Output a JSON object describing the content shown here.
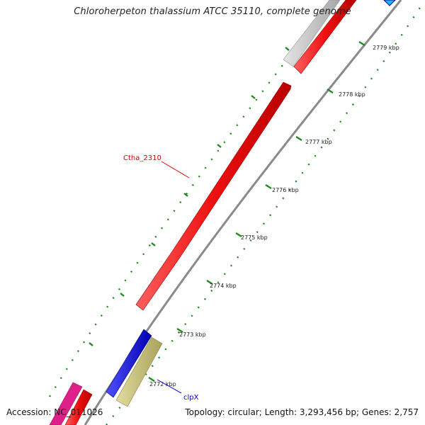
{
  "title": "Chloroherpeton thalassium ATCC 35110, complete genome",
  "footer": {
    "accession": "Accession: NC_011026",
    "summary": "Topology: circular; Length: 3,293,456 bp; Genes: 2,757"
  },
  "scale": {
    "unit": "kbp",
    "ticks": [
      {
        "kbp": 2772,
        "label": "2772 kbp"
      },
      {
        "kbp": 2773,
        "label": "2773 kbp"
      },
      {
        "kbp": 2774,
        "label": "2774 kbp"
      },
      {
        "kbp": 2775,
        "label": "2775 kbp"
      },
      {
        "kbp": 2776,
        "label": "2776 kbp"
      },
      {
        "kbp": 2777,
        "label": "2777 kbp"
      },
      {
        "kbp": 2778,
        "label": "2778 kbp"
      },
      {
        "kbp": 2779,
        "label": "2779 kbp"
      }
    ]
  },
  "colors": {
    "backbone": "#8a8a8a",
    "red_gene": "#e8101a",
    "gray_gene": "#c4c4c4",
    "blue_gene": "#1010e0",
    "olive_gene": "#c8c27a",
    "pink_gene": "#e0208a",
    "cyan_gene": "#22b4f0",
    "tick_green": "#1f8a1f",
    "label_red": "#e00000",
    "label_blue": "#0000cc"
  },
  "gene_labels": [
    {
      "name": "Ctha_2310",
      "color": "red"
    },
    {
      "name": "clpX",
      "color": "blue"
    }
  ]
}
